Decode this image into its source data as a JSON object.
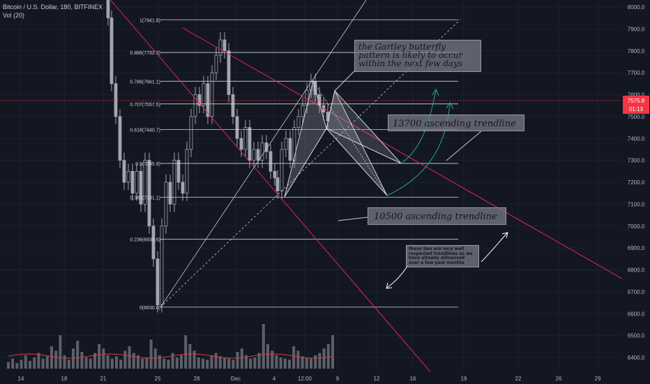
{
  "header": {
    "symbol": "Bitcoin / U.S. Dollar, 180, BITFINEX",
    "volume": "Vol (20)"
  },
  "price_axis": {
    "ticks": [
      "8000.0",
      "7900.0",
      "7800.0",
      "7700.0",
      "7600.0",
      "7500.0",
      "7400.0",
      "7300.0",
      "7200.0",
      "7100.0",
      "7000.0",
      "6900.0",
      "6800.0",
      "6700.0",
      "6600.0",
      "6500.0",
      "6400.0"
    ],
    "current_price": "7575.8",
    "countdown": "01:13"
  },
  "time_axis": {
    "ticks": [
      "14",
      "18",
      "21",
      "25",
      "28",
      "Dec",
      "4",
      "12:00",
      "9",
      "12",
      "16",
      "19",
      "22",
      "26",
      "29"
    ]
  },
  "annotations": {
    "gartley": "the Gartley butterfly pattern is likely to occur within the next few days",
    "trend_13700": "13700 ascending trendline",
    "trend_10500": "10500 ascending trendline",
    "note": "these two are very well respected trendlines as we have already witnessed over a few past months"
  },
  "colors": {
    "background": "#131722",
    "up_candle": "#a3a6af",
    "down_candle": "#a3a6af",
    "trendline": "#e91e63",
    "fib_line": "#d1d4dc",
    "current_price_bg": "#f23645",
    "arrow": "#26a69a"
  },
  "chart_data": {
    "type": "candlestick",
    "title": "Bitcoin / U.S. Dollar, 180, BITFINEX",
    "ylim": [
      6330,
      8050
    ],
    "fib_levels": [
      {
        "label": "1(7941.8)",
        "ratio": 1,
        "price": 7941.8
      },
      {
        "label": "0.886(7792.3)",
        "ratio": 0.886,
        "price": 7792.3
      },
      {
        "label": "0.786(7661.1)",
        "ratio": 0.786,
        "price": 7661.1
      },
      {
        "label": "0.707(7557.5)",
        "ratio": 0.707,
        "price": 7557.5
      },
      {
        "label": "0.618(7440.7)",
        "ratio": 0.618,
        "price": 7440.7
      },
      {
        "label": "0.5(7285.9)",
        "ratio": 0.5,
        "price": 7285.9
      },
      {
        "label": "0.382(7131.1)",
        "ratio": 0.382,
        "price": 7131.1
      },
      {
        "label": "0.236(6939.6)",
        "ratio": 0.236,
        "price": 6939.6
      },
      {
        "label": "0(6630.0)",
        "ratio": 0,
        "price": 6630.0
      }
    ],
    "current_price": 7575.8,
    "volume_indicator": "Vol (20)"
  }
}
